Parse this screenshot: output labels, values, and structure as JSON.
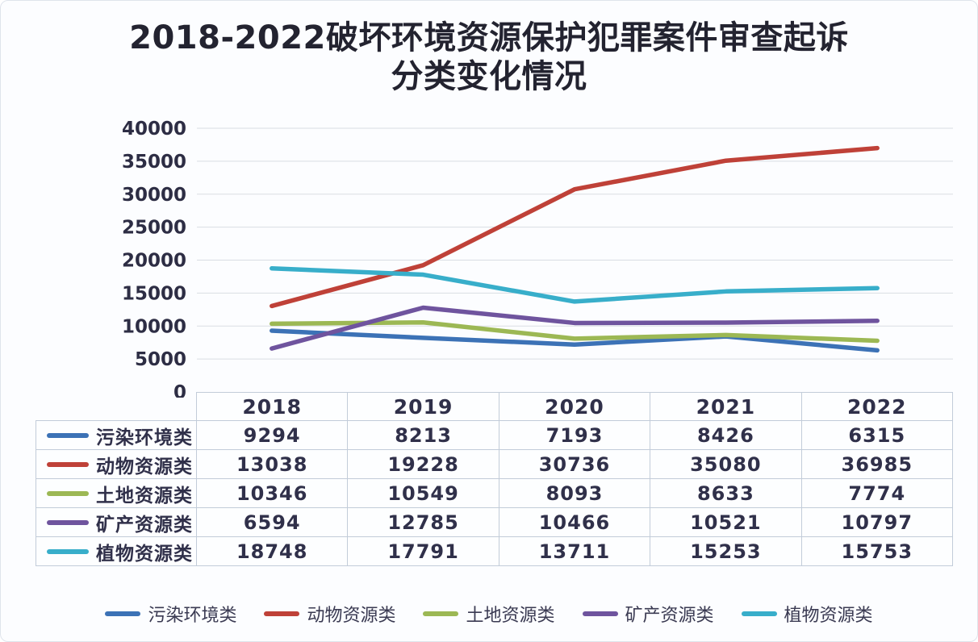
{
  "title": {
    "line1": "2018-2022破坏环境资源保护犯罪案件审查起诉",
    "line2": "分类变化情况"
  },
  "chart_data": {
    "type": "line",
    "title": "2018-2022破坏环境资源保护犯罪案件审查起诉分类变化情况",
    "categories": [
      "2018",
      "2019",
      "2020",
      "2021",
      "2022"
    ],
    "series": [
      {
        "name": "污染环境类",
        "color": "#3c72b6",
        "values": [
          9294,
          8213,
          7193,
          8426,
          6315
        ]
      },
      {
        "name": "动物资源类",
        "color": "#bf4138",
        "values": [
          13038,
          19228,
          30736,
          35080,
          36985
        ]
      },
      {
        "name": "土地资源类",
        "color": "#9cb854",
        "values": [
          10346,
          10549,
          8093,
          8633,
          7774
        ]
      },
      {
        "name": "矿产资源类",
        "color": "#6f549e",
        "values": [
          6594,
          12785,
          10466,
          10521,
          10797
        ]
      },
      {
        "name": "植物资源类",
        "color": "#38aeca",
        "values": [
          18748,
          17791,
          13711,
          15253,
          15753
        ]
      }
    ],
    "xlabel": "",
    "ylabel": "",
    "ylim": [
      0,
      40000
    ],
    "y_ticks": [
      0,
      5000,
      10000,
      15000,
      20000,
      25000,
      30000,
      35000,
      40000
    ],
    "grid": true,
    "legend_position": "bottom"
  },
  "colors": {
    "grid": "#d9dde3",
    "table_border": "#c2ccd9",
    "text": "#30304a",
    "title_text": "#232330",
    "card_background": "#fcfdff"
  }
}
